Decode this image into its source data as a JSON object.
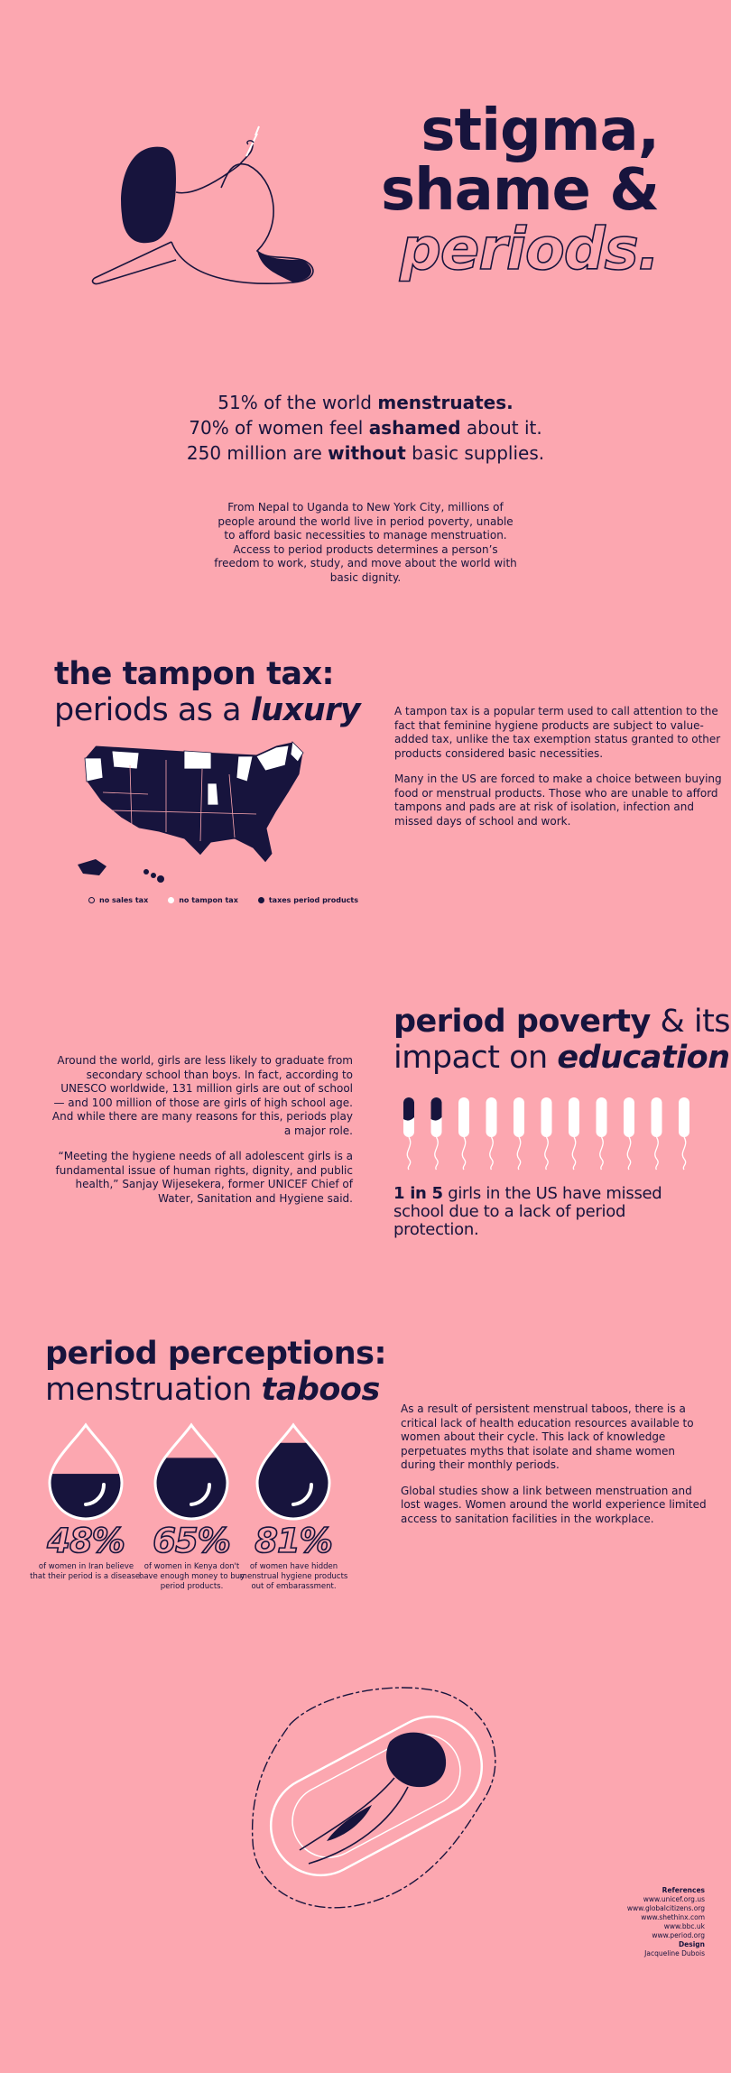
{
  "header": {
    "title": [
      "stigma,",
      "shame &",
      "periods."
    ]
  },
  "intro": {
    "stats": [
      [
        "51% of the world",
        "menstruates."
      ],
      [
        "70% of women feel",
        "ashamed",
        "about it."
      ],
      [
        "250 million are",
        "without",
        "basic supplies."
      ]
    ],
    "paragraph": "From Nepal to Uganda to New York City, millions of people around the world live in period poverty, unable to afford basic necessities to manage menstruation. Access to period products determines a person’s freedom to work, study, and move about the world with basic dignity."
  },
  "tampon_tax": {
    "heading": [
      "the tampon tax:",
      "periods as a",
      "luxury"
    ],
    "legend": [
      "no sales tax",
      "no tampon tax",
      "taxes period products"
    ],
    "paragraphs": [
      "A tampon tax is a popular term used to call attention to the fact that feminine hygiene products are subject to value-added tax, unlike the tax exemption status granted to other products considered basic necessities.",
      "Many in the US are forced to make a choice between buying food or menstrual products. Those who are unable to afford tampons and pads are at risk of isolation, infection and missed days of school and work."
    ]
  },
  "period_poverty": {
    "heading": [
      "period poverty",
      "& its",
      "impact on",
      "education"
    ],
    "paragraphs": [
      "Around the world, girls are less likely to graduate from secondary school than boys. In fact, according to UNESCO worldwide, 131 million girls are out of school — and 100 million of those are girls of high school age. And while there are many reasons for this, periods play a major role.",
      "“Meeting the hygiene needs of all adolescent girls is a fundamental issue of human rights, dignity, and public health,” Sanjay Wijesekera, former UNICEF Chief of Water, Sanitation and Hygiene said."
    ],
    "stat": [
      "1 in 5",
      "girls in the US have missed school due to a lack of period protection."
    ]
  },
  "taboos": {
    "heading": [
      "period perceptions:",
      "menstruation",
      "taboos"
    ],
    "stats": [
      {
        "value": 48,
        "label": "48%",
        "caption": "of women in Iran believe that their period is a disease."
      },
      {
        "value": 65,
        "label": "65%",
        "caption": "of women in Kenya don't have enough money to buy period products."
      },
      {
        "value": 81,
        "label": "81%",
        "caption": "of women have hidden menstrual hygiene products out of embarassment."
      }
    ],
    "paragraphs": [
      "As a result of persistent menstrual taboos, there is a critical lack of health education resources available to women about their cycle. This lack of knowledge perpetuates myths that isolate and shame women during their monthly periods.",
      "Global studies show a link between menstruation and lost wages. Women around the world experience limited access to sanitation facilities in the workplace."
    ]
  },
  "references": {
    "title": "References",
    "links": [
      "www.unicef.org.us",
      "www.globalcitizens.org",
      "www.shethinx.com",
      "www.bbc.uk",
      "www.period.org"
    ],
    "design_title": "Design",
    "designer": "Jacqueline Dubois"
  }
}
